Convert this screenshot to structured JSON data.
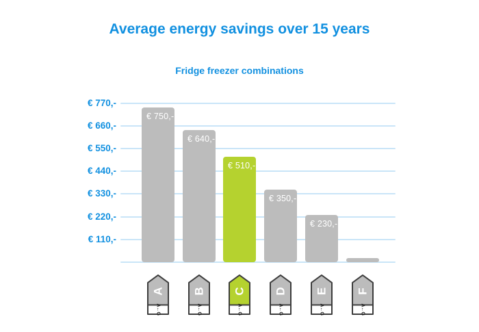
{
  "chart_data": {
    "type": "bar",
    "title": "Average energy savings over 15 years",
    "subtitle": "Fridge freezer combinations",
    "categories": [
      "A",
      "B",
      "C",
      "D",
      "E",
      "F"
    ],
    "values": [
      750,
      640,
      510,
      350,
      230,
      20
    ],
    "bar_labels": [
      "€ 750,-",
      "€ 640,-",
      "€ 510,-",
      "€ 350,-",
      "€ 230,-",
      ""
    ],
    "highlight_category": "C",
    "highlight_index": 2,
    "y_ticks": [
      {
        "value": 770,
        "label": "€ 770,-"
      },
      {
        "value": 660,
        "label": "€ 660,-"
      },
      {
        "value": 550,
        "label": "€ 550,-"
      },
      {
        "value": 440,
        "label": "€ 440,-"
      },
      {
        "value": 330,
        "label": "€ 330,-"
      },
      {
        "value": 220,
        "label": "€ 220,-"
      },
      {
        "value": 110,
        "label": "€ 110,-"
      }
    ],
    "ylim": [
      0,
      810
    ],
    "grid": true,
    "legend": "none",
    "xlabel": "",
    "ylabel": "",
    "rating_scale_text": "A←G",
    "colors": {
      "title_text": "#1190e0",
      "axis_text": "#1190e0",
      "gridline": "#c9e5f8",
      "bar": "#bcbcbc",
      "bar_highlight": "#b5d22f",
      "bar_label_text": "#ffffff",
      "icon_fill": "#bcbcbc",
      "icon_fill_highlight": "#b5d22f",
      "icon_border": "#3d3d3d",
      "icon_letter_text": "#ffffff",
      "icon_strip_bg": "#ffffff",
      "icon_strip_text": "#1a1a1a",
      "background": "#ffffff"
    }
  }
}
